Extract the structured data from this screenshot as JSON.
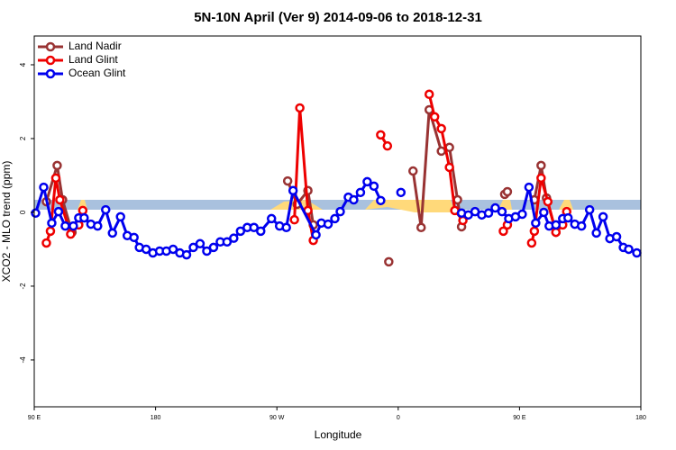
{
  "chart_data": {
    "type": "line",
    "title": "5N-10N April (Ver 9)   2014-09-06 to 2018-12-31",
    "x_label": "Longitude",
    "y_label": "XCO2 - MLO trend (ppm)",
    "xlim": [
      90,
      540
    ],
    "xticks": [
      {
        "value": 90,
        "label": "90 E"
      },
      {
        "value": 180,
        "label": "180"
      },
      {
        "value": 270,
        "label": "90 W"
      },
      {
        "value": 360,
        "label": "0"
      },
      {
        "value": 450,
        "label": "90 E"
      },
      {
        "value": 540,
        "label": "180"
      }
    ],
    "ylim": [
      -5.27,
      4.78
    ],
    "yticks": [
      -4,
      -2,
      0,
      2,
      4
    ],
    "legend": "top-left",
    "series": [
      {
        "name": "Land Nadir",
        "color": "#993333",
        "x": [
          99,
          107,
          111,
          118,
          null,
          278,
          285,
          293,
          297,
          null,
          353,
          null,
          371,
          377,
          383,
          392,
          398,
          404,
          407,
          null,
          439,
          441,
          null,
          461,
          466,
          470,
          477
        ],
        "values": [
          0.29,
          1.27,
          0.34,
          -0.54,
          null,
          0.85,
          0.22,
          0.59,
          -0.34,
          null,
          -1.34,
          null,
          1.12,
          -0.41,
          2.78,
          1.66,
          1.76,
          0.34,
          -0.39,
          null,
          0.49,
          0.56,
          null,
          0.34,
          1.27,
          0.39,
          -0.54
        ]
      },
      {
        "name": "Land Glint",
        "color": "#ee0000",
        "x": [
          99,
          102,
          106,
          109,
          117,
          123,
          126,
          null,
          283,
          287,
          293,
          297,
          null,
          347,
          352,
          null,
          383,
          387,
          392,
          398,
          402,
          408,
          null,
          438,
          441,
          null,
          459,
          461,
          466,
          471,
          477,
          482,
          485
        ],
        "values": [
          -0.83,
          -0.51,
          0.93,
          0.34,
          -0.59,
          -0.34,
          0.05,
          null,
          -0.2,
          2.83,
          0.05,
          -0.76,
          null,
          2.1,
          1.8,
          null,
          3.2,
          2.59,
          2.27,
          1.22,
          0.05,
          -0.22,
          null,
          -0.51,
          -0.34,
          null,
          -0.83,
          -0.51,
          0.93,
          0.29,
          -0.54,
          -0.34,
          0.02
        ]
      },
      {
        "name": "Ocean Glint",
        "color": "#0000ee",
        "x": [
          91,
          97,
          103,
          108,
          113,
          119,
          123,
          127,
          132,
          137,
          143,
          148,
          154,
          159,
          164,
          168,
          173,
          178,
          183,
          188,
          193,
          198,
          203,
          208,
          213,
          218,
          223,
          228,
          233,
          238,
          243,
          248,
          253,
          258,
          266,
          272,
          277,
          282,
          299,
          303,
          308,
          313,
          317,
          323,
          327,
          332,
          337,
          342,
          347,
          null,
          362,
          null,
          407,
          412,
          417,
          422,
          427,
          432,
          437,
          442,
          447,
          452,
          457,
          462,
          468,
          472,
          477,
          482,
          486,
          491,
          496,
          502,
          507,
          512,
          517,
          522,
          527,
          531,
          537
        ],
        "values": [
          -0.02,
          0.68,
          -0.29,
          0.02,
          -0.37,
          -0.37,
          -0.15,
          -0.15,
          -0.32,
          -0.37,
          0.07,
          -0.56,
          -0.12,
          -0.63,
          -0.68,
          -0.95,
          -1.0,
          -1.1,
          -1.05,
          -1.05,
          -1.0,
          -1.1,
          -1.15,
          -0.95,
          -0.85,
          -1.05,
          -0.95,
          -0.8,
          -0.8,
          -0.7,
          -0.51,
          -0.41,
          -0.41,
          -0.51,
          -0.17,
          -0.37,
          -0.41,
          0.59,
          -0.61,
          -0.29,
          -0.32,
          -0.17,
          0.02,
          0.41,
          0.34,
          0.54,
          0.83,
          0.71,
          0.32,
          null,
          0.54,
          null,
          -0.02,
          -0.07,
          0.02,
          -0.07,
          -0.02,
          0.12,
          0.02,
          -0.17,
          -0.12,
          -0.05,
          0.68,
          -0.29,
          0.0,
          -0.37,
          -0.34,
          -0.17,
          -0.15,
          -0.32,
          -0.37,
          0.07,
          -0.56,
          -0.12,
          -0.71,
          -0.66,
          -0.95,
          -1.0,
          -1.1
        ]
      }
    ]
  }
}
